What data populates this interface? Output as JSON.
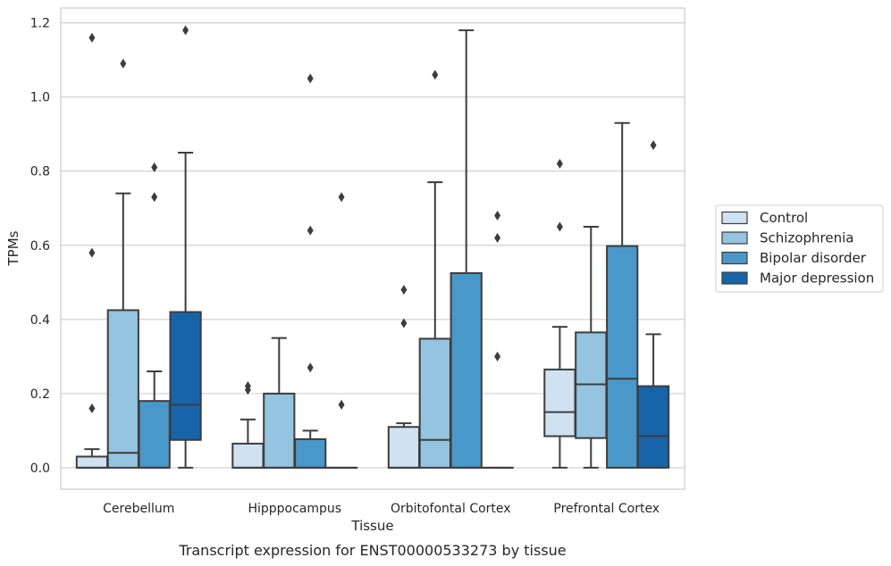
{
  "chart_data": {
    "type": "boxplot",
    "title": "",
    "caption": "Transcript expression for ENST00000533273 by tissue",
    "xlabel": "Tissue",
    "ylabel": "TPMs",
    "ylim": [
      -0.058,
      1.24
    ],
    "yticks": [
      0.0,
      0.2,
      0.4,
      0.6,
      0.8,
      1.0,
      1.2
    ],
    "ytick_labels": [
      "0.0",
      "0.2",
      "0.4",
      "0.6",
      "0.8",
      "1.0",
      "1.2"
    ],
    "grid": "horizontal",
    "legend_position": "right",
    "categories": [
      "Cerebellum",
      "Hipppocampus",
      "Orbitofontal Cortex",
      "Prefrontal Cortex"
    ],
    "series": [
      {
        "name": "Control",
        "color": "#d0e1f2",
        "boxes": [
          {
            "whislo": 0.0,
            "q1": 0.0,
            "med": 0.0,
            "q3": 0.03,
            "whishi": 0.05,
            "fliers": [
              0.16,
              0.58,
              1.16
            ]
          },
          {
            "whislo": 0.0,
            "q1": 0.0,
            "med": 0.0,
            "q3": 0.065,
            "whishi": 0.13,
            "fliers": [
              0.21,
              0.22
            ]
          },
          {
            "whislo": 0.0,
            "q1": 0.0,
            "med": 0.0,
            "q3": 0.11,
            "whishi": 0.12,
            "fliers": [
              0.39,
              0.48
            ]
          },
          {
            "whislo": 0.0,
            "q1": 0.085,
            "med": 0.15,
            "q3": 0.265,
            "whishi": 0.38,
            "fliers": [
              0.65,
              0.82
            ]
          }
        ]
      },
      {
        "name": "Schizophrenia",
        "color": "#94c4df",
        "boxes": [
          {
            "whislo": 0.0,
            "q1": 0.0,
            "med": 0.04,
            "q3": 0.425,
            "whishi": 0.74,
            "fliers": [
              1.09
            ]
          },
          {
            "whislo": 0.0,
            "q1": 0.0,
            "med": 0.0,
            "q3": 0.2,
            "whishi": 0.35,
            "fliers": []
          },
          {
            "whislo": 0.0,
            "q1": 0.0,
            "med": 0.075,
            "q3": 0.348,
            "whishi": 0.77,
            "fliers": [
              1.06
            ]
          },
          {
            "whislo": 0.0,
            "q1": 0.08,
            "med": 0.225,
            "q3": 0.365,
            "whishi": 0.65,
            "fliers": []
          }
        ]
      },
      {
        "name": "Bipolar disorder",
        "color": "#4a98c9",
        "boxes": [
          {
            "whislo": 0.0,
            "q1": 0.0,
            "med": 0.0,
            "q3": 0.18,
            "whishi": 0.26,
            "fliers": [
              0.73,
              0.81
            ]
          },
          {
            "whislo": 0.0,
            "q1": 0.0,
            "med": 0.0,
            "q3": 0.077,
            "whishi": 0.1,
            "fliers": [
              0.27,
              0.64,
              1.05
            ]
          },
          {
            "whislo": 0.0,
            "q1": 0.0,
            "med": 0.0,
            "q3": 0.525,
            "whishi": 1.18,
            "fliers": []
          },
          {
            "whislo": 0.0,
            "q1": 0.0,
            "med": 0.24,
            "q3": 0.598,
            "whishi": 0.93,
            "fliers": []
          }
        ]
      },
      {
        "name": "Major depression",
        "color": "#1764ab",
        "boxes": [
          {
            "whislo": 0.0,
            "q1": 0.075,
            "med": 0.17,
            "q3": 0.42,
            "whishi": 0.85,
            "fliers": [
              1.18
            ]
          },
          {
            "whislo": 0.0,
            "q1": 0.0,
            "med": 0.0,
            "q3": 0.0,
            "whishi": 0.0,
            "fliers": [
              0.17,
              0.73
            ]
          },
          {
            "whislo": 0.0,
            "q1": 0.0,
            "med": 0.0,
            "q3": 0.0,
            "whishi": 0.0,
            "fliers": [
              0.3,
              0.62,
              0.68
            ]
          },
          {
            "whislo": 0.0,
            "q1": 0.0,
            "med": 0.085,
            "q3": 0.22,
            "whishi": 0.36,
            "fliers": [
              0.87
            ]
          }
        ]
      }
    ]
  }
}
